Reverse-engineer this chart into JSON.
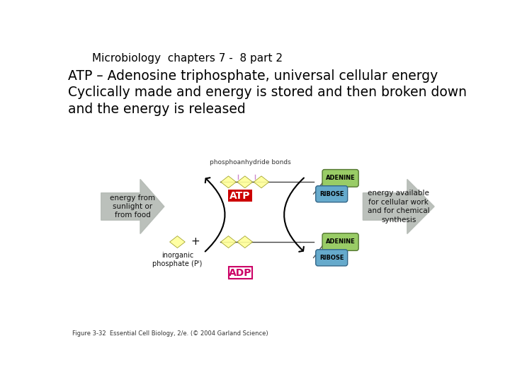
{
  "title_line": "Microbiology  chapters 7 -  8 part 2",
  "bullet1": "ATP – Adenosine triphosphate, universal cellular energy",
  "bullet2": "Cyclically made and energy is stored and then broken down\nand the energy is released",
  "caption": "Figure 3-32  Essential Cell Biology, 2/e. (© 2004 Garland Science)",
  "bg_color": "#ffffff",
  "title_fontsize": 11,
  "bullet_fontsize": 13.5,
  "caption_fontsize": 6,
  "atp_label_color": "#ffffff",
  "atp_box_color": "#cc0000",
  "adp_label_color": "#cc0066",
  "adp_box_color": "#ffffff",
  "phospho_highlight": "#ffff99",
  "adenine_color": "#99cc66",
  "ribose_color": "#66aacc",
  "arrow_color": "#aaaaaa",
  "bond_label": "phosphoanhydride bonds",
  "left_arrow_text": "energy from\nsunlight or\nfrom food",
  "right_arrow_text": "energy available\nfor cellular work\nand for chemical\nsynthesis",
  "bottom_left_text": "inorganic\nphosphate (Pᴵ)",
  "atp_text": "ATP",
  "adp_text": "ADP",
  "adenine_text": "ADENINE",
  "ribose_text": "RIBOSE"
}
